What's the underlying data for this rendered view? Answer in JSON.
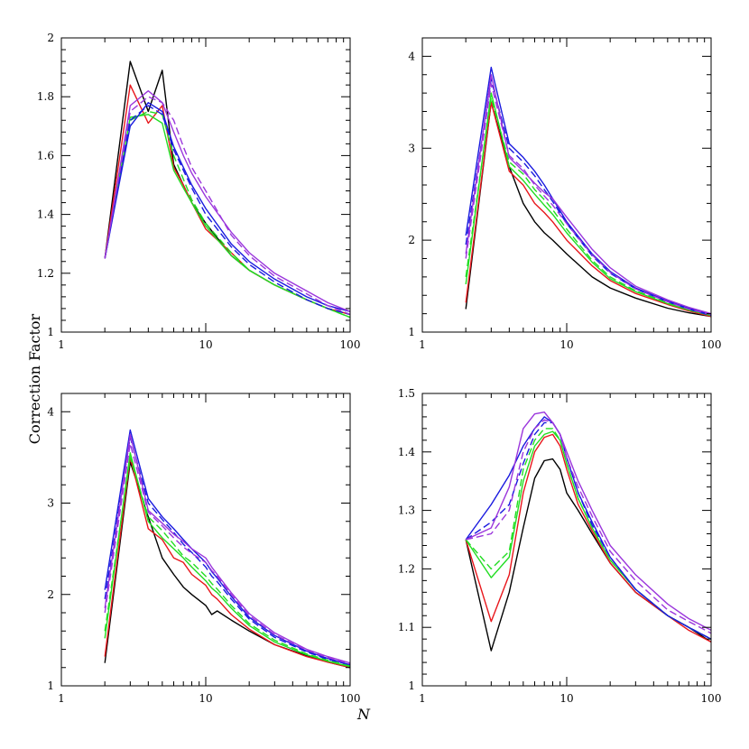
{
  "shared_ylabel": "Correction Factor",
  "shared_xlabel": "N",
  "colors": {
    "black": "#000000",
    "red": "#e8161b",
    "green": "#22dd22",
    "blue": "#1a1adf",
    "purple": "#9b36dc"
  },
  "chart_data": [
    {
      "type": "line",
      "xscale": "log",
      "xlim": [
        1,
        100
      ],
      "ylim": [
        1,
        2
      ],
      "xticks": [
        1,
        10,
        100
      ],
      "xtick_labels": [
        "1",
        "10",
        "100"
      ],
      "yticks": [
        1,
        1.2,
        1.4,
        1.6,
        1.8,
        2
      ],
      "ytick_labels": [
        "1",
        "1.2",
        "1.4",
        "1.6",
        "1.8",
        "2"
      ],
      "grid": false,
      "x": [
        2,
        3,
        4,
        5,
        6,
        7,
        8,
        10,
        15,
        20,
        30,
        50,
        70,
        100
      ],
      "series": [
        {
          "color": "black",
          "style": "solid",
          "values": [
            1.25,
            1.92,
            1.75,
            1.89,
            1.57,
            1.5,
            1.44,
            1.37,
            1.26,
            1.21,
            1.16,
            1.11,
            1.08,
            1.06
          ]
        },
        {
          "color": "red",
          "style": "solid",
          "values": [
            1.25,
            1.84,
            1.71,
            1.77,
            1.56,
            1.5,
            1.44,
            1.35,
            1.27,
            1.21,
            1.16,
            1.11,
            1.08,
            1.06
          ]
        },
        {
          "color": "green",
          "style": "solid",
          "values": [
            1.25,
            1.73,
            1.74,
            1.71,
            1.55,
            1.49,
            1.44,
            1.36,
            1.26,
            1.21,
            1.16,
            1.11,
            1.08,
            1.05
          ]
        },
        {
          "color": "green",
          "style": "dashed",
          "values": [
            1.25,
            1.72,
            1.75,
            1.74,
            1.6,
            1.52,
            1.45,
            1.37,
            1.27,
            1.21,
            1.16,
            1.11,
            1.08,
            1.05
          ]
        },
        {
          "color": "blue",
          "style": "solid",
          "values": [
            1.25,
            1.7,
            1.78,
            1.75,
            1.63,
            1.56,
            1.5,
            1.42,
            1.3,
            1.24,
            1.18,
            1.12,
            1.09,
            1.07
          ]
        },
        {
          "color": "blue",
          "style": "dashed",
          "values": [
            1.25,
            1.72,
            1.77,
            1.74,
            1.62,
            1.55,
            1.49,
            1.4,
            1.29,
            1.23,
            1.17,
            1.11,
            1.08,
            1.06
          ]
        },
        {
          "color": "purple",
          "style": "solid",
          "values": [
            1.25,
            1.77,
            1.82,
            1.78,
            1.68,
            1.6,
            1.54,
            1.46,
            1.34,
            1.27,
            1.2,
            1.14,
            1.1,
            1.07
          ]
        },
        {
          "color": "purple",
          "style": "dashed",
          "values": [
            1.25,
            1.75,
            1.8,
            1.78,
            1.72,
            1.63,
            1.56,
            1.48,
            1.33,
            1.26,
            1.19,
            1.13,
            1.09,
            1.06
          ]
        }
      ]
    },
    {
      "type": "line",
      "xscale": "log",
      "xlim": [
        1,
        100
      ],
      "ylim": [
        1,
        4.2
      ],
      "xticks": [
        1,
        10,
        100
      ],
      "xtick_labels": [
        "1",
        "10",
        "100"
      ],
      "yticks": [
        1,
        2,
        3,
        4
      ],
      "ytick_labels": [
        "1",
        "2",
        "3",
        "4"
      ],
      "grid": false,
      "x": [
        2,
        3,
        4,
        5,
        6,
        7,
        8,
        10,
        15,
        20,
        30,
        50,
        70,
        100
      ],
      "series": [
        {
          "color": "black",
          "style": "solid",
          "values": [
            1.25,
            3.5,
            2.8,
            2.4,
            2.2,
            2.08,
            2.0,
            1.85,
            1.6,
            1.48,
            1.37,
            1.26,
            1.21,
            1.17
          ]
        },
        {
          "color": "red",
          "style": "solid",
          "values": [
            1.32,
            3.5,
            2.75,
            2.6,
            2.4,
            2.3,
            2.2,
            2.0,
            1.72,
            1.56,
            1.42,
            1.3,
            1.23,
            1.17
          ]
        },
        {
          "color": "green",
          "style": "solid",
          "values": [
            1.52,
            3.6,
            2.8,
            2.65,
            2.5,
            2.38,
            2.28,
            2.08,
            1.76,
            1.58,
            1.44,
            1.31,
            1.24,
            1.18
          ]
        },
        {
          "color": "green",
          "style": "dashed",
          "values": [
            1.6,
            3.55,
            2.85,
            2.72,
            2.55,
            2.44,
            2.33,
            2.12,
            1.78,
            1.6,
            1.45,
            1.32,
            1.24,
            1.18
          ]
        },
        {
          "color": "blue",
          "style": "solid",
          "values": [
            2.05,
            3.88,
            3.05,
            2.9,
            2.75,
            2.6,
            2.45,
            2.2,
            1.85,
            1.66,
            1.48,
            1.34,
            1.26,
            1.19
          ]
        },
        {
          "color": "blue",
          "style": "dashed",
          "values": [
            1.95,
            3.75,
            3.0,
            2.85,
            2.7,
            2.55,
            2.42,
            2.18,
            1.83,
            1.64,
            1.47,
            1.33,
            1.25,
            1.18
          ]
        },
        {
          "color": "purple",
          "style": "solid",
          "values": [
            1.85,
            3.8,
            2.9,
            2.75,
            2.62,
            2.52,
            2.45,
            2.25,
            1.9,
            1.7,
            1.5,
            1.35,
            1.27,
            1.2
          ]
        },
        {
          "color": "purple",
          "style": "dashed",
          "values": [
            1.8,
            3.7,
            2.92,
            2.78,
            2.6,
            2.48,
            2.38,
            2.18,
            1.84,
            1.65,
            1.47,
            1.33,
            1.25,
            1.19
          ]
        }
      ]
    },
    {
      "type": "line",
      "xscale": "log",
      "xlim": [
        1,
        100
      ],
      "ylim": [
        1,
        4.2
      ],
      "xticks": [
        1,
        10,
        100
      ],
      "xtick_labels": [
        "1",
        "10",
        "100"
      ],
      "yticks": [
        1,
        2,
        3,
        4
      ],
      "ytick_labels": [
        "1",
        "2",
        "3",
        "4"
      ],
      "grid": false,
      "x": [
        2,
        3,
        4,
        5,
        6,
        7,
        8,
        10,
        11,
        12,
        15,
        20,
        30,
        50,
        70,
        100
      ],
      "series": [
        {
          "color": "black",
          "style": "solid",
          "values": [
            1.25,
            3.45,
            2.85,
            2.4,
            2.22,
            2.08,
            2.0,
            1.88,
            1.78,
            1.82,
            1.72,
            1.6,
            1.45,
            1.33,
            1.26,
            1.2
          ]
        },
        {
          "color": "red",
          "style": "solid",
          "values": [
            1.32,
            3.5,
            2.72,
            2.6,
            2.4,
            2.35,
            2.22,
            2.1,
            2.0,
            1.95,
            1.78,
            1.62,
            1.45,
            1.32,
            1.26,
            1.2
          ]
        },
        {
          "color": "green",
          "style": "solid",
          "values": [
            1.52,
            3.55,
            2.8,
            2.62,
            2.5,
            2.4,
            2.3,
            2.15,
            2.07,
            2.02,
            1.85,
            1.66,
            1.48,
            1.34,
            1.27,
            1.21
          ]
        },
        {
          "color": "green",
          "style": "dashed",
          "values": [
            1.6,
            3.5,
            2.85,
            2.7,
            2.55,
            2.42,
            2.35,
            2.2,
            2.12,
            2.06,
            1.88,
            1.68,
            1.5,
            1.35,
            1.28,
            1.22
          ]
        },
        {
          "color": "blue",
          "style": "solid",
          "values": [
            2.05,
            3.8,
            3.05,
            2.85,
            2.72,
            2.6,
            2.5,
            2.35,
            2.25,
            2.18,
            1.98,
            1.75,
            1.55,
            1.38,
            1.3,
            1.23
          ]
        },
        {
          "color": "blue",
          "style": "dashed",
          "values": [
            1.95,
            3.72,
            3.0,
            2.82,
            2.68,
            2.55,
            2.46,
            2.3,
            2.2,
            2.14,
            1.95,
            1.73,
            1.53,
            1.37,
            1.29,
            1.23
          ]
        },
        {
          "color": "purple",
          "style": "solid",
          "values": [
            1.85,
            3.75,
            2.92,
            2.78,
            2.66,
            2.58,
            2.5,
            2.4,
            2.3,
            2.22,
            2.02,
            1.79,
            1.58,
            1.4,
            1.32,
            1.25
          ]
        },
        {
          "color": "purple",
          "style": "dashed",
          "values": [
            1.8,
            3.65,
            2.9,
            2.75,
            2.62,
            2.52,
            2.45,
            2.35,
            2.26,
            2.2,
            2.0,
            1.77,
            1.56,
            1.39,
            1.31,
            1.24
          ]
        }
      ]
    },
    {
      "type": "line",
      "xscale": "log",
      "xlim": [
        1,
        100
      ],
      "ylim": [
        1,
        1.5
      ],
      "xticks": [
        1,
        10,
        100
      ],
      "xtick_labels": [
        "1",
        "10",
        "100"
      ],
      "yticks": [
        1,
        1.1,
        1.2,
        1.3,
        1.4,
        1.5
      ],
      "ytick_labels": [
        "1",
        "1.1",
        "1.2",
        "1.3",
        "1.4",
        "1.5"
      ],
      "grid": false,
      "x": [
        2,
        3,
        4,
        5,
        6,
        7,
        8,
        9,
        10,
        12,
        15,
        20,
        30,
        50,
        70,
        100
      ],
      "series": [
        {
          "color": "black",
          "style": "solid",
          "values": [
            1.25,
            1.06,
            1.16,
            1.27,
            1.355,
            1.385,
            1.388,
            1.37,
            1.33,
            1.3,
            1.26,
            1.21,
            1.16,
            1.12,
            1.1,
            1.075
          ]
        },
        {
          "color": "red",
          "style": "solid",
          "values": [
            1.25,
            1.11,
            1.19,
            1.33,
            1.4,
            1.425,
            1.43,
            1.41,
            1.37,
            1.31,
            1.265,
            1.21,
            1.16,
            1.12,
            1.095,
            1.075
          ]
        },
        {
          "color": "green",
          "style": "solid",
          "values": [
            1.25,
            1.185,
            1.22,
            1.35,
            1.41,
            1.43,
            1.435,
            1.42,
            1.38,
            1.32,
            1.27,
            1.215,
            1.165,
            1.12,
            1.1,
            1.08
          ]
        },
        {
          "color": "green",
          "style": "dashed",
          "values": [
            1.25,
            1.2,
            1.23,
            1.37,
            1.42,
            1.44,
            1.44,
            1.42,
            1.38,
            1.32,
            1.27,
            1.215,
            1.165,
            1.12,
            1.1,
            1.08
          ]
        },
        {
          "color": "blue",
          "style": "solid",
          "values": [
            1.25,
            1.31,
            1.36,
            1.41,
            1.44,
            1.46,
            1.45,
            1.43,
            1.39,
            1.33,
            1.28,
            1.22,
            1.165,
            1.12,
            1.1,
            1.08
          ]
        },
        {
          "color": "blue",
          "style": "dashed",
          "values": [
            1.25,
            1.28,
            1.31,
            1.38,
            1.43,
            1.45,
            1.45,
            1.43,
            1.39,
            1.33,
            1.275,
            1.22,
            1.165,
            1.12,
            1.1,
            1.08
          ]
        },
        {
          "color": "purple",
          "style": "solid",
          "values": [
            1.25,
            1.27,
            1.34,
            1.44,
            1.465,
            1.468,
            1.45,
            1.43,
            1.4,
            1.35,
            1.3,
            1.24,
            1.19,
            1.14,
            1.115,
            1.095
          ]
        },
        {
          "color": "purple",
          "style": "dashed",
          "values": [
            1.25,
            1.26,
            1.3,
            1.4,
            1.44,
            1.455,
            1.45,
            1.43,
            1.39,
            1.34,
            1.29,
            1.23,
            1.18,
            1.13,
            1.11,
            1.09
          ]
        }
      ]
    }
  ]
}
